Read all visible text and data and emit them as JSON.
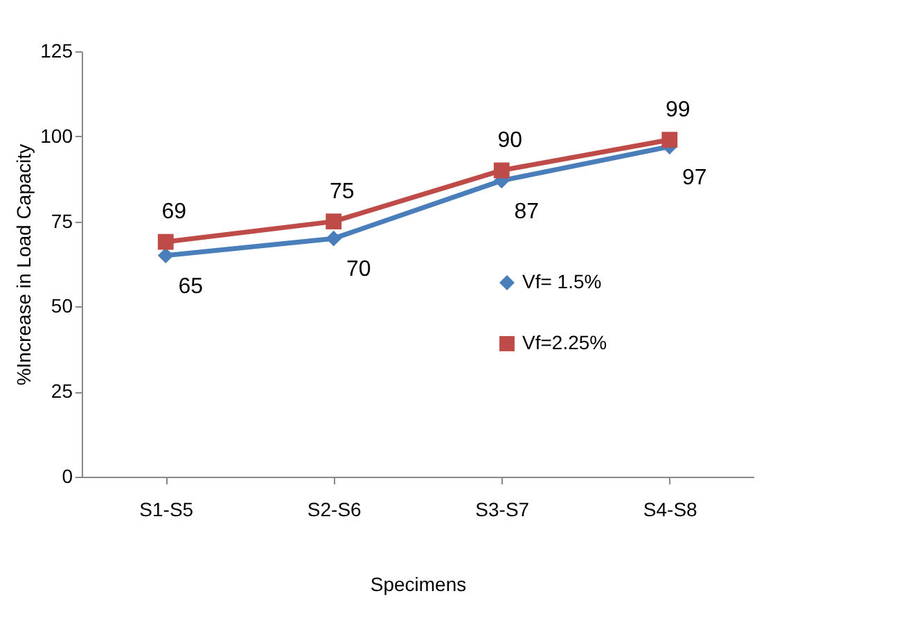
{
  "chart_data": {
    "type": "line",
    "xlabel": "Specimens",
    "ylabel": "%Increase in Load Capacity",
    "categories": [
      "S1-S5",
      "S2-S6",
      "S3-S7",
      "S4-S8"
    ],
    "series": [
      {
        "name": "Vf= 1.5%",
        "color": "#4a7ebb",
        "marker": "diamond",
        "values": [
          65,
          70,
          87,
          97
        ]
      },
      {
        "name": "Vf=2.25%",
        "color": "#be4b48",
        "marker": "square",
        "values": [
          69,
          75,
          90,
          99
        ]
      }
    ],
    "ylim": [
      0,
      125
    ],
    "yticks": [
      0,
      25,
      50,
      75,
      100,
      125
    ],
    "grid": false,
    "legend": "right",
    "data_labels": true
  }
}
